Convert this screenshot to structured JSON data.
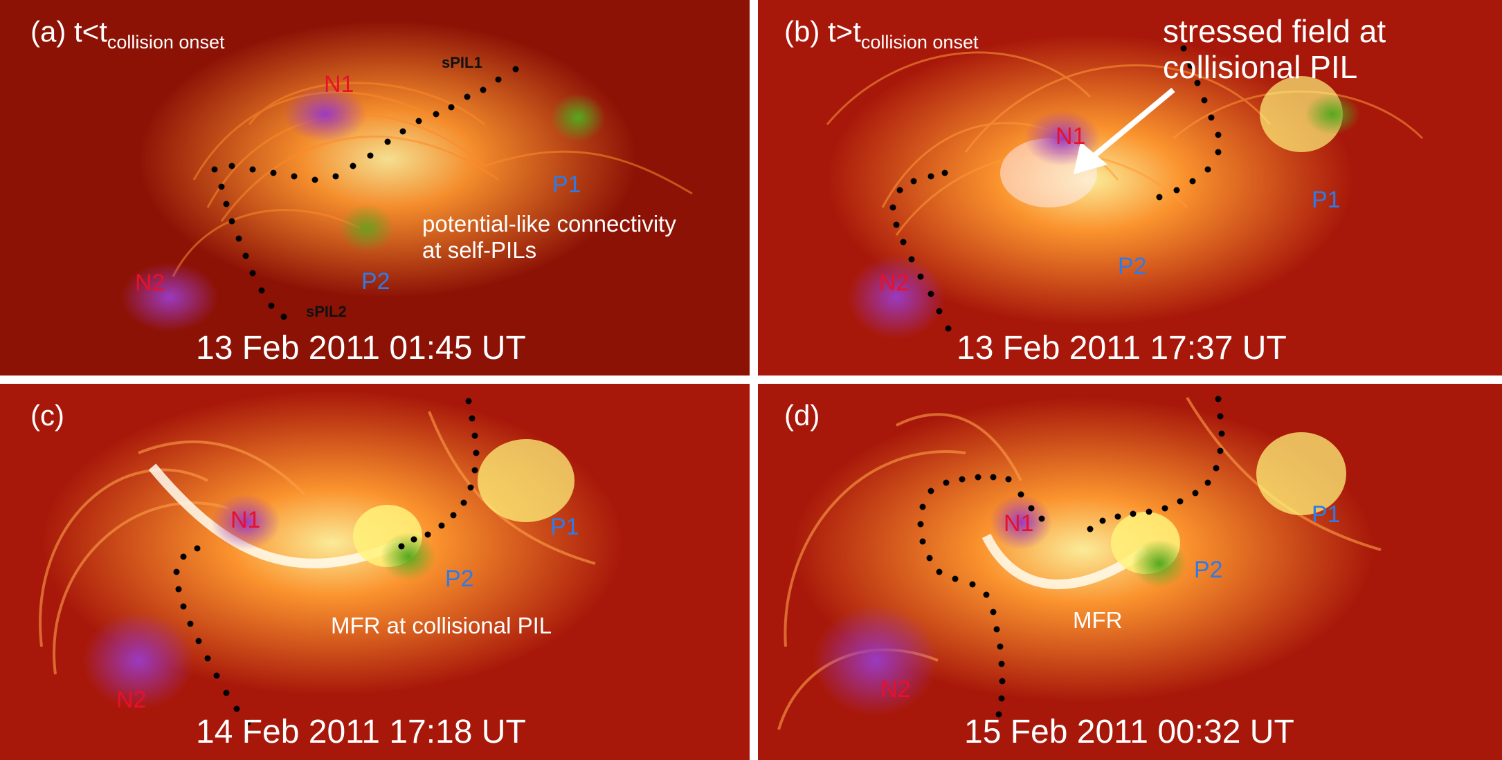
{
  "panels": [
    {
      "tag": "(a) t<t",
      "tag_sub": "collision onset",
      "date": "13 Feb 2011 01:45 UT",
      "polarities": {
        "n1": "N1",
        "n2": "N2",
        "p1": "P1",
        "p2": "P2"
      },
      "pil_labels": {
        "spil1": "sPIL1",
        "spil2": "sPIL2"
      },
      "annotation": "potential-like connectivity\nat self-PILs"
    },
    {
      "tag": "(b) t>t",
      "tag_sub": "collision onset",
      "date": "13 Feb 2011 17:37 UT",
      "polarities": {
        "n1": "N1",
        "n2": "N2",
        "p1": "P1",
        "p2": "P2"
      },
      "annotation": "stressed field at\ncollisional PIL"
    },
    {
      "tag": "(c)",
      "date": "14 Feb 2011 17:18 UT",
      "polarities": {
        "n1": "N1",
        "n2": "N2",
        "p1": "P1",
        "p2": "P2"
      },
      "annotation": "MFR at collisional PIL"
    },
    {
      "tag": "(d)",
      "date": "15 Feb 2011 00:32 UT",
      "polarities": {
        "n1": "N1",
        "n2": "N2",
        "p1": "P1",
        "p2": "P2"
      },
      "annotation": "MFR"
    }
  ],
  "colors": {
    "background": "#a8180a",
    "field_lines": "#ff8a2a",
    "bright_core": "#ffe94a",
    "negative_polarity": "#8a2aa8",
    "positive_polarity": "#5aa020",
    "pil_dots": "#000000",
    "negative_label": "#e8102a",
    "positive_label": "#2e7be8"
  }
}
